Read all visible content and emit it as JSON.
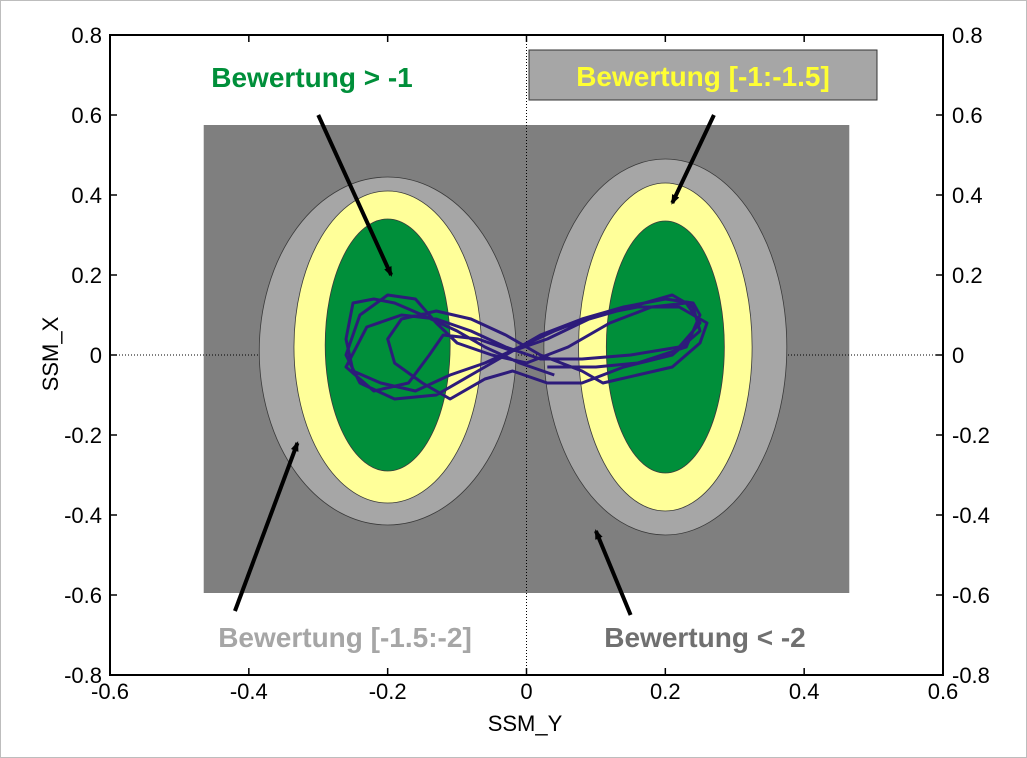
{
  "chart_data": {
    "type": "line",
    "xlabel": "SSM_Y",
    "ylabel": "SSM_X",
    "xlim": [
      -0.6,
      0.6
    ],
    "ylim": [
      -0.8,
      0.8
    ],
    "x_ticks": [
      "-0.6",
      "-0.4",
      "-0.2",
      "0",
      "0.2",
      "0.4",
      "0.6"
    ],
    "y_ticks": [
      "0.8",
      "0.6",
      "0.4",
      "0.2",
      "0",
      "-0.2",
      "-0.4",
      "-0.6",
      "-0.8"
    ],
    "grid": "dotted zero lines only",
    "background_region": {
      "x": [
        -0.465,
        0.465
      ],
      "y": [
        -0.595,
        0.575
      ],
      "color": "#7f7f7f"
    },
    "ellipses": [
      {
        "cx": -0.2,
        "cy": 0.01,
        "rx": 0.185,
        "ry": 0.435,
        "color": "#a6a6a6"
      },
      {
        "cx": -0.2,
        "cy": 0.02,
        "rx": 0.135,
        "ry": 0.39,
        "color": "#ffff99"
      },
      {
        "cx": -0.2,
        "cy": 0.025,
        "rx": 0.09,
        "ry": 0.315,
        "color": "#008f3a"
      },
      {
        "cx": 0.2,
        "cy": 0.02,
        "rx": 0.175,
        "ry": 0.47,
        "color": "#a6a6a6"
      },
      {
        "cx": 0.2,
        "cy": 0.02,
        "rx": 0.125,
        "ry": 0.41,
        "color": "#ffff99"
      },
      {
        "cx": 0.2,
        "cy": 0.02,
        "rx": 0.085,
        "ry": 0.315,
        "color": "#008f3a"
      }
    ],
    "series": [
      {
        "color": "#2d1b7a",
        "points": [
          [
            0.03,
            -0.03
          ],
          [
            0.1,
            -0.03
          ],
          [
            0.16,
            -0.02
          ],
          [
            0.23,
            0.02
          ],
          [
            0.25,
            0.1
          ],
          [
            0.24,
            0.13
          ],
          [
            0.2,
            0.14
          ],
          [
            0.14,
            0.12
          ],
          [
            0.08,
            0.09
          ],
          [
            0.02,
            0.05
          ],
          [
            -0.03,
            0.0
          ],
          [
            -0.08,
            -0.05
          ],
          [
            -0.13,
            -0.1
          ],
          [
            -0.19,
            -0.11
          ],
          [
            -0.24,
            -0.07
          ],
          [
            -0.26,
            0.0
          ],
          [
            -0.24,
            0.1
          ],
          [
            -0.2,
            0.15
          ],
          [
            -0.16,
            0.14
          ],
          [
            -0.13,
            0.08
          ],
          [
            -0.1,
            0.03
          ],
          [
            -0.05,
            0.0
          ],
          [
            0.0,
            -0.02
          ],
          [
            0.06,
            0.02
          ],
          [
            0.12,
            0.08
          ],
          [
            0.18,
            0.12
          ],
          [
            0.23,
            0.13
          ],
          [
            0.25,
            0.08
          ],
          [
            0.22,
            0.02
          ],
          [
            0.15,
            0.0
          ],
          [
            0.08,
            -0.01
          ],
          [
            0.02,
            -0.01
          ],
          [
            -0.03,
            0.02
          ],
          [
            -0.08,
            0.06
          ],
          [
            -0.13,
            0.09
          ],
          [
            -0.18,
            0.1
          ],
          [
            -0.23,
            0.07
          ],
          [
            -0.26,
            -0.03
          ],
          [
            -0.22,
            -0.09
          ],
          [
            -0.17,
            -0.07
          ],
          [
            -0.14,
            0.0
          ],
          [
            -0.12,
            0.05
          ],
          [
            -0.07,
            0.04
          ],
          [
            -0.02,
            0.01
          ],
          [
            0.03,
            0.04
          ],
          [
            0.09,
            0.09
          ],
          [
            0.15,
            0.12
          ],
          [
            0.21,
            0.15
          ],
          [
            0.24,
            0.12
          ],
          [
            0.25,
            0.06
          ],
          [
            0.21,
            0.0
          ],
          [
            0.14,
            -0.03
          ],
          [
            0.08,
            -0.07
          ],
          [
            0.03,
            -0.07
          ],
          [
            -0.02,
            -0.04
          ],
          [
            -0.06,
            -0.06
          ],
          [
            -0.11,
            -0.11
          ],
          [
            -0.15,
            -0.07
          ],
          [
            -0.19,
            -0.02
          ],
          [
            -0.2,
            0.04
          ],
          [
            -0.18,
            0.09
          ],
          [
            -0.13,
            0.11
          ],
          [
            -0.08,
            0.09
          ],
          [
            -0.03,
            0.05
          ],
          [
            0.02,
            0.0
          ],
          [
            0.08,
            -0.04
          ],
          [
            0.11,
            -0.07
          ],
          [
            0.16,
            -0.05
          ],
          [
            0.21,
            -0.03
          ],
          [
            0.25,
            0.03
          ],
          [
            0.26,
            0.08
          ],
          [
            0.22,
            0.12
          ],
          [
            0.16,
            0.12
          ],
          [
            0.1,
            0.1
          ],
          [
            0.04,
            0.06
          ],
          [
            -0.01,
            0.02
          ],
          [
            -0.06,
            -0.02
          ],
          [
            -0.11,
            -0.05
          ],
          [
            -0.16,
            -0.09
          ],
          [
            -0.21,
            -0.07
          ],
          [
            -0.25,
            -0.04
          ],
          [
            -0.26,
            0.04
          ],
          [
            -0.25,
            0.13
          ],
          [
            -0.22,
            0.14
          ],
          [
            -0.19,
            0.13
          ],
          [
            -0.15,
            0.1
          ],
          [
            -0.1,
            0.06
          ],
          [
            -0.06,
            0.02
          ],
          [
            -0.01,
            -0.02
          ],
          [
            0.04,
            -0.05
          ]
        ]
      }
    ],
    "annotations": [
      {
        "text": "Bewertung > -1",
        "color": "#008f3a",
        "box": false,
        "arrow_from": [
          -0.3,
          0.6
        ],
        "arrow_to": [
          -0.195,
          0.2
        ]
      },
      {
        "text": "Bewertung [-1:-1.5]",
        "color": "#ffff33",
        "box": true,
        "box_color": "#a6a6a6",
        "arrow_from": [
          0.27,
          0.6
        ],
        "arrow_to": [
          0.21,
          0.38
        ]
      },
      {
        "text": "Bewertung [-1.5:-2]",
        "color": "#a6a6a6",
        "box": false,
        "arrow_from": [
          -0.42,
          -0.64
        ],
        "arrow_to": [
          -0.33,
          -0.22
        ]
      },
      {
        "text": "Bewertung < -2",
        "color": "#707070",
        "box": false,
        "arrow_from": [
          0.15,
          -0.65
        ],
        "arrow_to": [
          0.1,
          -0.44
        ]
      }
    ]
  }
}
